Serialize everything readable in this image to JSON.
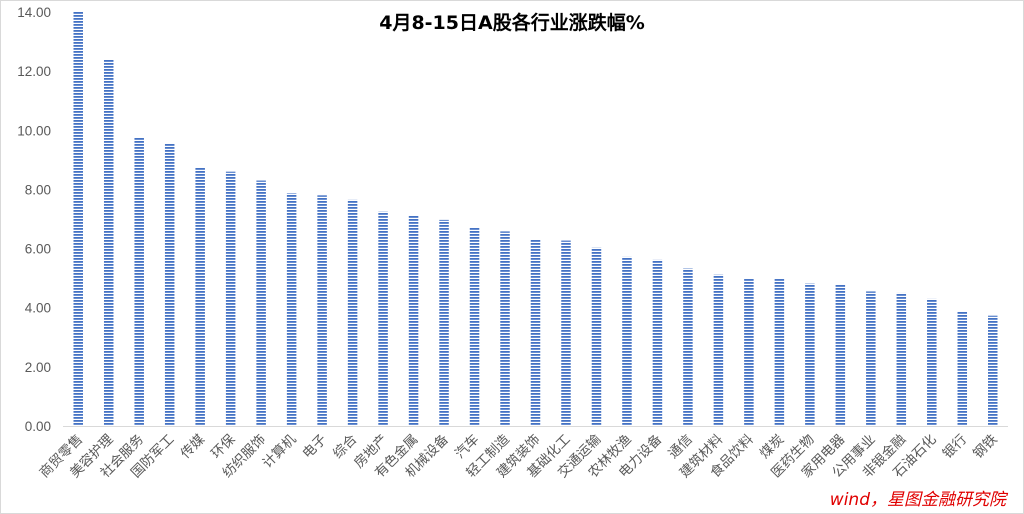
{
  "chart_data": {
    "type": "bar",
    "title": "4月8-15日A股各行业涨跌幅%",
    "xlabel": "",
    "ylabel": "",
    "ylim": [
      0,
      14
    ],
    "yticks": [
      "0.00",
      "2.00",
      "4.00",
      "6.00",
      "8.00",
      "10.00",
      "12.00",
      "14.00"
    ],
    "grid": false,
    "legend": "none",
    "categories": [
      "商贸零售",
      "美容护理",
      "社会服务",
      "国防军工",
      "传媒",
      "环保",
      "纺织服饰",
      "计算机",
      "电子",
      "综合",
      "房地产",
      "有色金属",
      "机械设备",
      "汽车",
      "轻工制造",
      "建筑装饰",
      "基础化工",
      "交通运输",
      "农林牧渔",
      "电力设备",
      "通信",
      "建筑材料",
      "食品饮料",
      "煤炭",
      "医药生物",
      "家用电器",
      "公用事业",
      "非银金融",
      "石油石化",
      "银行",
      "钢铁"
    ],
    "values": [
      14.0,
      12.4,
      9.75,
      9.55,
      8.75,
      8.6,
      8.3,
      7.87,
      7.8,
      7.65,
      7.25,
      7.12,
      6.97,
      6.72,
      6.58,
      6.32,
      6.27,
      6.03,
      5.72,
      5.62,
      5.33,
      5.12,
      4.97,
      4.97,
      4.82,
      4.78,
      4.55,
      4.5,
      4.3,
      3.87,
      3.73
    ]
  },
  "colors": {
    "bar": "#4472c4",
    "axis": "#d9d9d9",
    "source": "#e00000"
  },
  "source_note": "wind，星图金融研究院"
}
